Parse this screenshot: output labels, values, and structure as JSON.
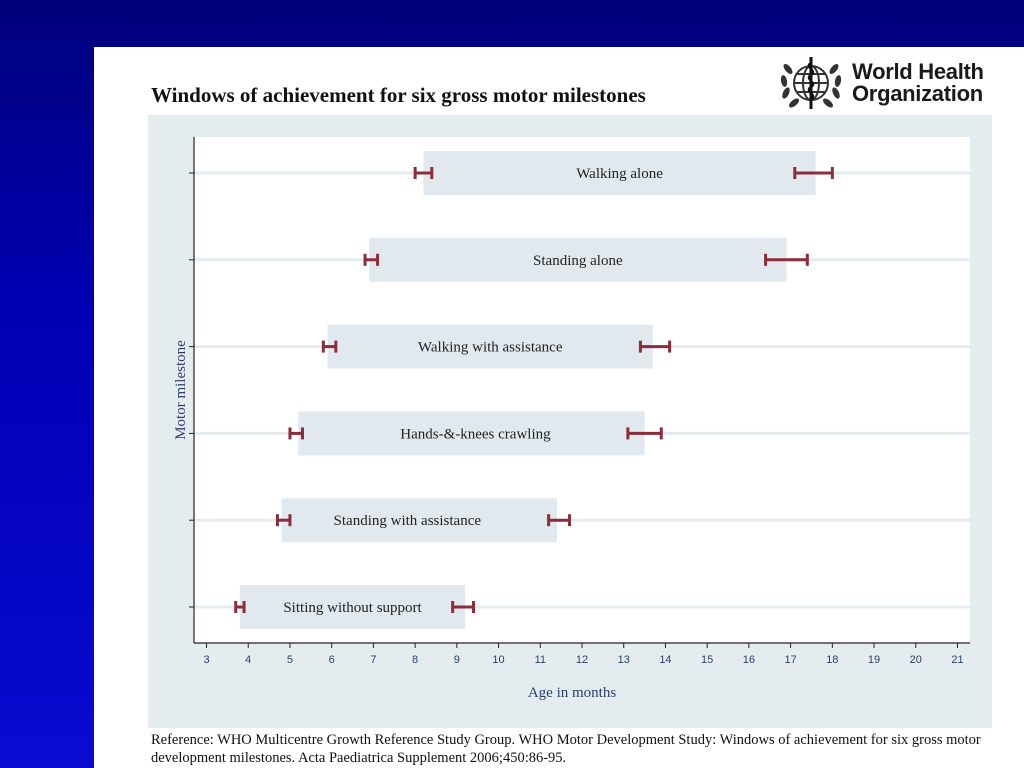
{
  "slide": {
    "title": "Windows of achievement for six gross motor milestones",
    "reference": "Reference: WHO Multicentre Growth Reference Study Group. WHO Motor Development Study: Windows of achievement for six gross motor development milestones. Acta Paediatrica Supplement 2006;450:86-95.",
    "logo": {
      "line1": "World Health",
      "line2": "Organization",
      "icon": "who-emblem-icon"
    }
  },
  "colors": {
    "background_top": "#00007a",
    "background_bottom": "#0a0ad2",
    "chart_background": "#e5ecf0",
    "plot_area": "#ffffff",
    "bar_fill": "#e2e9ee",
    "error_bar": "#8b2d3a",
    "axis_label": "#2b3f6b"
  },
  "chart_data": {
    "type": "range-bar",
    "title": "",
    "xlabel": "Age in months",
    "ylabel": "Motor milestone",
    "xlim": [
      2.7,
      21.3
    ],
    "xticks": [
      3,
      4,
      5,
      6,
      7,
      8,
      9,
      10,
      11,
      12,
      13,
      14,
      15,
      16,
      17,
      18,
      19,
      20,
      21
    ],
    "grid": "horizontal",
    "milestones": [
      {
        "name": "Sitting without support",
        "start": 3.8,
        "end": 9.2,
        "start_ci": [
          3.7,
          3.9
        ],
        "end_ci": [
          8.9,
          9.4
        ]
      },
      {
        "name": "Standing with assistance",
        "start": 4.8,
        "end": 11.4,
        "start_ci": [
          4.7,
          5.0
        ],
        "end_ci": [
          11.2,
          11.7
        ]
      },
      {
        "name": "Hands-&-knees crawling",
        "start": 5.2,
        "end": 13.5,
        "start_ci": [
          5.0,
          5.3
        ],
        "end_ci": [
          13.1,
          13.9
        ]
      },
      {
        "name": "Walking with assistance",
        "start": 5.9,
        "end": 13.7,
        "start_ci": [
          5.8,
          6.1
        ],
        "end_ci": [
          13.4,
          14.1
        ]
      },
      {
        "name": "Standing alone",
        "start": 6.9,
        "end": 16.9,
        "start_ci": [
          6.8,
          7.1
        ],
        "end_ci": [
          16.4,
          17.4
        ]
      },
      {
        "name": "Walking alone",
        "start": 8.2,
        "end": 17.6,
        "start_ci": [
          8.0,
          8.4
        ],
        "end_ci": [
          17.1,
          18.0
        ]
      }
    ]
  }
}
